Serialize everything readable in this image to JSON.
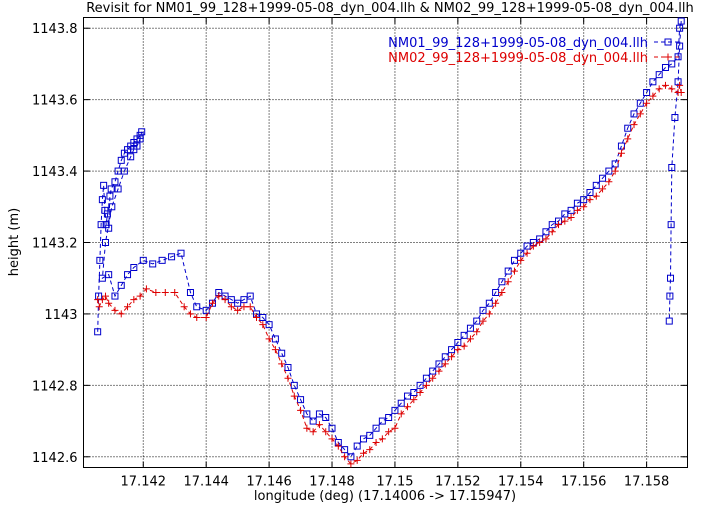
{
  "chart_data": {
    "type": "line",
    "title": "Revisit for NM01_99_128+1999-05-08_dyn_004.llh & NM02_99_128+1999-05-08_dyn_004.llh",
    "xlabel": "longitude (deg) (17.14006 -> 17.15947)",
    "ylabel": "height (m)",
    "xlim": [
      17.1401,
      17.1593
    ],
    "ylim": [
      1142.57,
      1143.83
    ],
    "x_ticks": [
      17.142,
      17.144,
      17.146,
      17.148,
      17.15,
      17.152,
      17.154,
      17.156,
      17.158
    ],
    "x_tick_labels": [
      "17.142",
      "17.144",
      "17.146",
      "17.148",
      "17.15",
      "17.152",
      "17.154",
      "17.156",
      "17.158"
    ],
    "y_ticks": [
      1142.6,
      1142.8,
      1143,
      1143.2,
      1143.4,
      1143.6,
      1143.8
    ],
    "y_tick_labels": [
      "1142.6",
      "1142.8",
      "1143",
      "1143.2",
      "1143.4",
      "1143.6",
      "1143.8"
    ],
    "grid": true,
    "legend_position": "top-right",
    "series": [
      {
        "name": "NM01_99_128+1999-05-08_dyn_004.llh",
        "color": "#0000cc",
        "marker": "square",
        "line_style": "dashed",
        "points": [
          [
            17.14055,
            1142.95
          ],
          [
            17.14058,
            1143.05
          ],
          [
            17.14062,
            1143.15
          ],
          [
            17.14066,
            1143.25
          ],
          [
            17.1407,
            1143.32
          ],
          [
            17.14074,
            1143.36
          ],
          [
            17.14078,
            1143.29
          ],
          [
            17.14082,
            1143.25
          ],
          [
            17.14086,
            1143.28
          ],
          [
            17.1409,
            1143.24
          ],
          [
            17.14094,
            1143.33
          ],
          [
            17.14098,
            1143.35
          ],
          [
            17.1411,
            1143.37
          ],
          [
            17.1412,
            1143.4
          ],
          [
            17.1413,
            1143.43
          ],
          [
            17.1414,
            1143.45
          ],
          [
            17.1415,
            1143.46
          ],
          [
            17.1416,
            1143.47
          ],
          [
            17.1417,
            1143.48
          ],
          [
            17.1418,
            1143.49
          ],
          [
            17.1419,
            1143.5
          ],
          [
            17.14195,
            1143.51
          ],
          [
            17.1419,
            1143.49
          ],
          [
            17.1418,
            1143.47
          ],
          [
            17.1417,
            1143.46
          ],
          [
            17.1416,
            1143.44
          ],
          [
            17.1414,
            1143.4
          ],
          [
            17.1412,
            1143.35
          ],
          [
            17.141,
            1143.3
          ],
          [
            17.1408,
            1143.2
          ],
          [
            17.1407,
            1143.1
          ],
          [
            17.1409,
            1143.11
          ],
          [
            17.1411,
            1143.05
          ],
          [
            17.1413,
            1143.08
          ],
          [
            17.1415,
            1143.11
          ],
          [
            17.1417,
            1143.13
          ],
          [
            17.142,
            1143.15
          ],
          [
            17.1423,
            1143.14
          ],
          [
            17.1426,
            1143.15
          ],
          [
            17.1429,
            1143.16
          ],
          [
            17.1432,
            1143.17
          ],
          [
            17.1435,
            1143.06
          ],
          [
            17.1437,
            1143.02
          ],
          [
            17.144,
            1143.01
          ],
          [
            17.1442,
            1143.03
          ],
          [
            17.1444,
            1143.06
          ],
          [
            17.1446,
            1143.05
          ],
          [
            17.1448,
            1143.04
          ],
          [
            17.145,
            1143.03
          ],
          [
            17.1452,
            1143.04
          ],
          [
            17.1454,
            1143.05
          ],
          [
            17.1456,
            1143.0
          ],
          [
            17.1458,
            1142.99
          ],
          [
            17.146,
            1142.97
          ],
          [
            17.1462,
            1142.93
          ],
          [
            17.1464,
            1142.89
          ],
          [
            17.1466,
            1142.85
          ],
          [
            17.1468,
            1142.8
          ],
          [
            17.147,
            1142.76
          ],
          [
            17.1472,
            1142.72
          ],
          [
            17.1474,
            1142.7
          ],
          [
            17.1476,
            1142.72
          ],
          [
            17.1478,
            1142.71
          ],
          [
            17.148,
            1142.68
          ],
          [
            17.1482,
            1142.64
          ],
          [
            17.1484,
            1142.62
          ],
          [
            17.1486,
            1142.6
          ],
          [
            17.1488,
            1142.63
          ],
          [
            17.149,
            1142.65
          ],
          [
            17.1492,
            1142.66
          ],
          [
            17.1494,
            1142.68
          ],
          [
            17.1496,
            1142.7
          ],
          [
            17.1498,
            1142.71
          ],
          [
            17.15,
            1142.73
          ],
          [
            17.1502,
            1142.75
          ],
          [
            17.1504,
            1142.77
          ],
          [
            17.1506,
            1142.78
          ],
          [
            17.1508,
            1142.8
          ],
          [
            17.151,
            1142.82
          ],
          [
            17.1512,
            1142.84
          ],
          [
            17.1514,
            1142.86
          ],
          [
            17.1516,
            1142.88
          ],
          [
            17.1518,
            1142.9
          ],
          [
            17.152,
            1142.92
          ],
          [
            17.1522,
            1142.94
          ],
          [
            17.1524,
            1142.96
          ],
          [
            17.1526,
            1142.98
          ],
          [
            17.1528,
            1143.01
          ],
          [
            17.153,
            1143.03
          ],
          [
            17.1532,
            1143.06
          ],
          [
            17.1534,
            1143.09
          ],
          [
            17.1536,
            1143.12
          ],
          [
            17.1538,
            1143.15
          ],
          [
            17.154,
            1143.17
          ],
          [
            17.1542,
            1143.19
          ],
          [
            17.1544,
            1143.2
          ],
          [
            17.1546,
            1143.21
          ],
          [
            17.1548,
            1143.23
          ],
          [
            17.155,
            1143.25
          ],
          [
            17.1552,
            1143.26
          ],
          [
            17.1554,
            1143.28
          ],
          [
            17.1556,
            1143.29
          ],
          [
            17.1558,
            1143.31
          ],
          [
            17.156,
            1143.32
          ],
          [
            17.1562,
            1143.34
          ],
          [
            17.1564,
            1143.36
          ],
          [
            17.1566,
            1143.38
          ],
          [
            17.1568,
            1143.4
          ],
          [
            17.157,
            1143.42
          ],
          [
            17.1572,
            1143.47
          ],
          [
            17.1574,
            1143.52
          ],
          [
            17.1576,
            1143.56
          ],
          [
            17.1578,
            1143.59
          ],
          [
            17.158,
            1143.62
          ],
          [
            17.1582,
            1143.65
          ],
          [
            17.1584,
            1143.67
          ],
          [
            17.1586,
            1143.69
          ],
          [
            17.1588,
            1143.7
          ],
          [
            17.159,
            1143.72
          ],
          [
            17.15905,
            1143.8
          ],
          [
            17.1591,
            1143.82
          ],
          [
            17.15905,
            1143.75
          ],
          [
            17.159,
            1143.65
          ],
          [
            17.1589,
            1143.55
          ],
          [
            17.1588,
            1143.41
          ],
          [
            17.15878,
            1143.25
          ],
          [
            17.15876,
            1143.1
          ],
          [
            17.15874,
            1143.05
          ],
          [
            17.15872,
            1142.98
          ]
        ]
      },
      {
        "name": "NM02_99_128+1999-05-08_dyn_004.llh",
        "color": "#dd0000",
        "marker": "plus",
        "line_style": "dashed",
        "points": [
          [
            17.14055,
            1143.04
          ],
          [
            17.1406,
            1143.02
          ],
          [
            17.1407,
            1143.04
          ],
          [
            17.1408,
            1143.05
          ],
          [
            17.1409,
            1143.03
          ],
          [
            17.1411,
            1143.01
          ],
          [
            17.1413,
            1143.0
          ],
          [
            17.1415,
            1143.02
          ],
          [
            17.1417,
            1143.04
          ],
          [
            17.1419,
            1143.05
          ],
          [
            17.1421,
            1143.07
          ],
          [
            17.1424,
            1143.06
          ],
          [
            17.1427,
            1143.06
          ],
          [
            17.143,
            1143.06
          ],
          [
            17.1433,
            1143.02
          ],
          [
            17.1435,
            1143.0
          ],
          [
            17.1437,
            1142.99
          ],
          [
            17.144,
            1142.99
          ],
          [
            17.1442,
            1143.03
          ],
          [
            17.1444,
            1143.05
          ],
          [
            17.1446,
            1143.04
          ],
          [
            17.1448,
            1143.02
          ],
          [
            17.145,
            1143.01
          ],
          [
            17.1452,
            1143.02
          ],
          [
            17.1454,
            1143.02
          ],
          [
            17.1456,
            1142.99
          ],
          [
            17.1458,
            1142.97
          ],
          [
            17.146,
            1142.93
          ],
          [
            17.1462,
            1142.9
          ],
          [
            17.1464,
            1142.86
          ],
          [
            17.1466,
            1142.82
          ],
          [
            17.1468,
            1142.77
          ],
          [
            17.147,
            1142.73
          ],
          [
            17.1472,
            1142.68
          ],
          [
            17.1474,
            1142.67
          ],
          [
            17.1476,
            1142.69
          ],
          [
            17.1478,
            1142.67
          ],
          [
            17.148,
            1142.65
          ],
          [
            17.1482,
            1142.63
          ],
          [
            17.1484,
            1142.6
          ],
          [
            17.1486,
            1142.58
          ],
          [
            17.1488,
            1142.59
          ],
          [
            17.149,
            1142.61
          ],
          [
            17.1492,
            1142.62
          ],
          [
            17.1494,
            1142.64
          ],
          [
            17.1496,
            1142.65
          ],
          [
            17.1498,
            1142.67
          ],
          [
            17.15,
            1142.68
          ],
          [
            17.1502,
            1142.72
          ],
          [
            17.1504,
            1142.74
          ],
          [
            17.1506,
            1142.76
          ],
          [
            17.1508,
            1142.78
          ],
          [
            17.151,
            1142.8
          ],
          [
            17.1512,
            1142.82
          ],
          [
            17.1514,
            1142.84
          ],
          [
            17.1516,
            1142.86
          ],
          [
            17.1518,
            1142.88
          ],
          [
            17.152,
            1142.9
          ],
          [
            17.1522,
            1142.91
          ],
          [
            17.1524,
            1142.93
          ],
          [
            17.1526,
            1142.95
          ],
          [
            17.1528,
            1142.98
          ],
          [
            17.153,
            1143.0
          ],
          [
            17.1532,
            1143.03
          ],
          [
            17.1534,
            1143.06
          ],
          [
            17.1536,
            1143.09
          ],
          [
            17.1538,
            1143.12
          ],
          [
            17.154,
            1143.15
          ],
          [
            17.1542,
            1143.17
          ],
          [
            17.1544,
            1143.19
          ],
          [
            17.1546,
            1143.2
          ],
          [
            17.1548,
            1143.21
          ],
          [
            17.155,
            1143.23
          ],
          [
            17.1552,
            1143.25
          ],
          [
            17.1554,
            1143.26
          ],
          [
            17.1556,
            1143.27
          ],
          [
            17.1558,
            1143.29
          ],
          [
            17.156,
            1143.3
          ],
          [
            17.1562,
            1143.32
          ],
          [
            17.1564,
            1143.33
          ],
          [
            17.1566,
            1143.35
          ],
          [
            17.1568,
            1143.37
          ],
          [
            17.157,
            1143.4
          ],
          [
            17.1572,
            1143.45
          ],
          [
            17.1574,
            1143.49
          ],
          [
            17.1576,
            1143.53
          ],
          [
            17.1578,
            1143.56
          ],
          [
            17.158,
            1143.59
          ],
          [
            17.1582,
            1143.61
          ],
          [
            17.1584,
            1143.63
          ],
          [
            17.1586,
            1143.64
          ],
          [
            17.1588,
            1143.63
          ],
          [
            17.159,
            1143.62
          ],
          [
            17.15905,
            1143.64
          ],
          [
            17.1591,
            1143.62
          ]
        ]
      }
    ]
  }
}
